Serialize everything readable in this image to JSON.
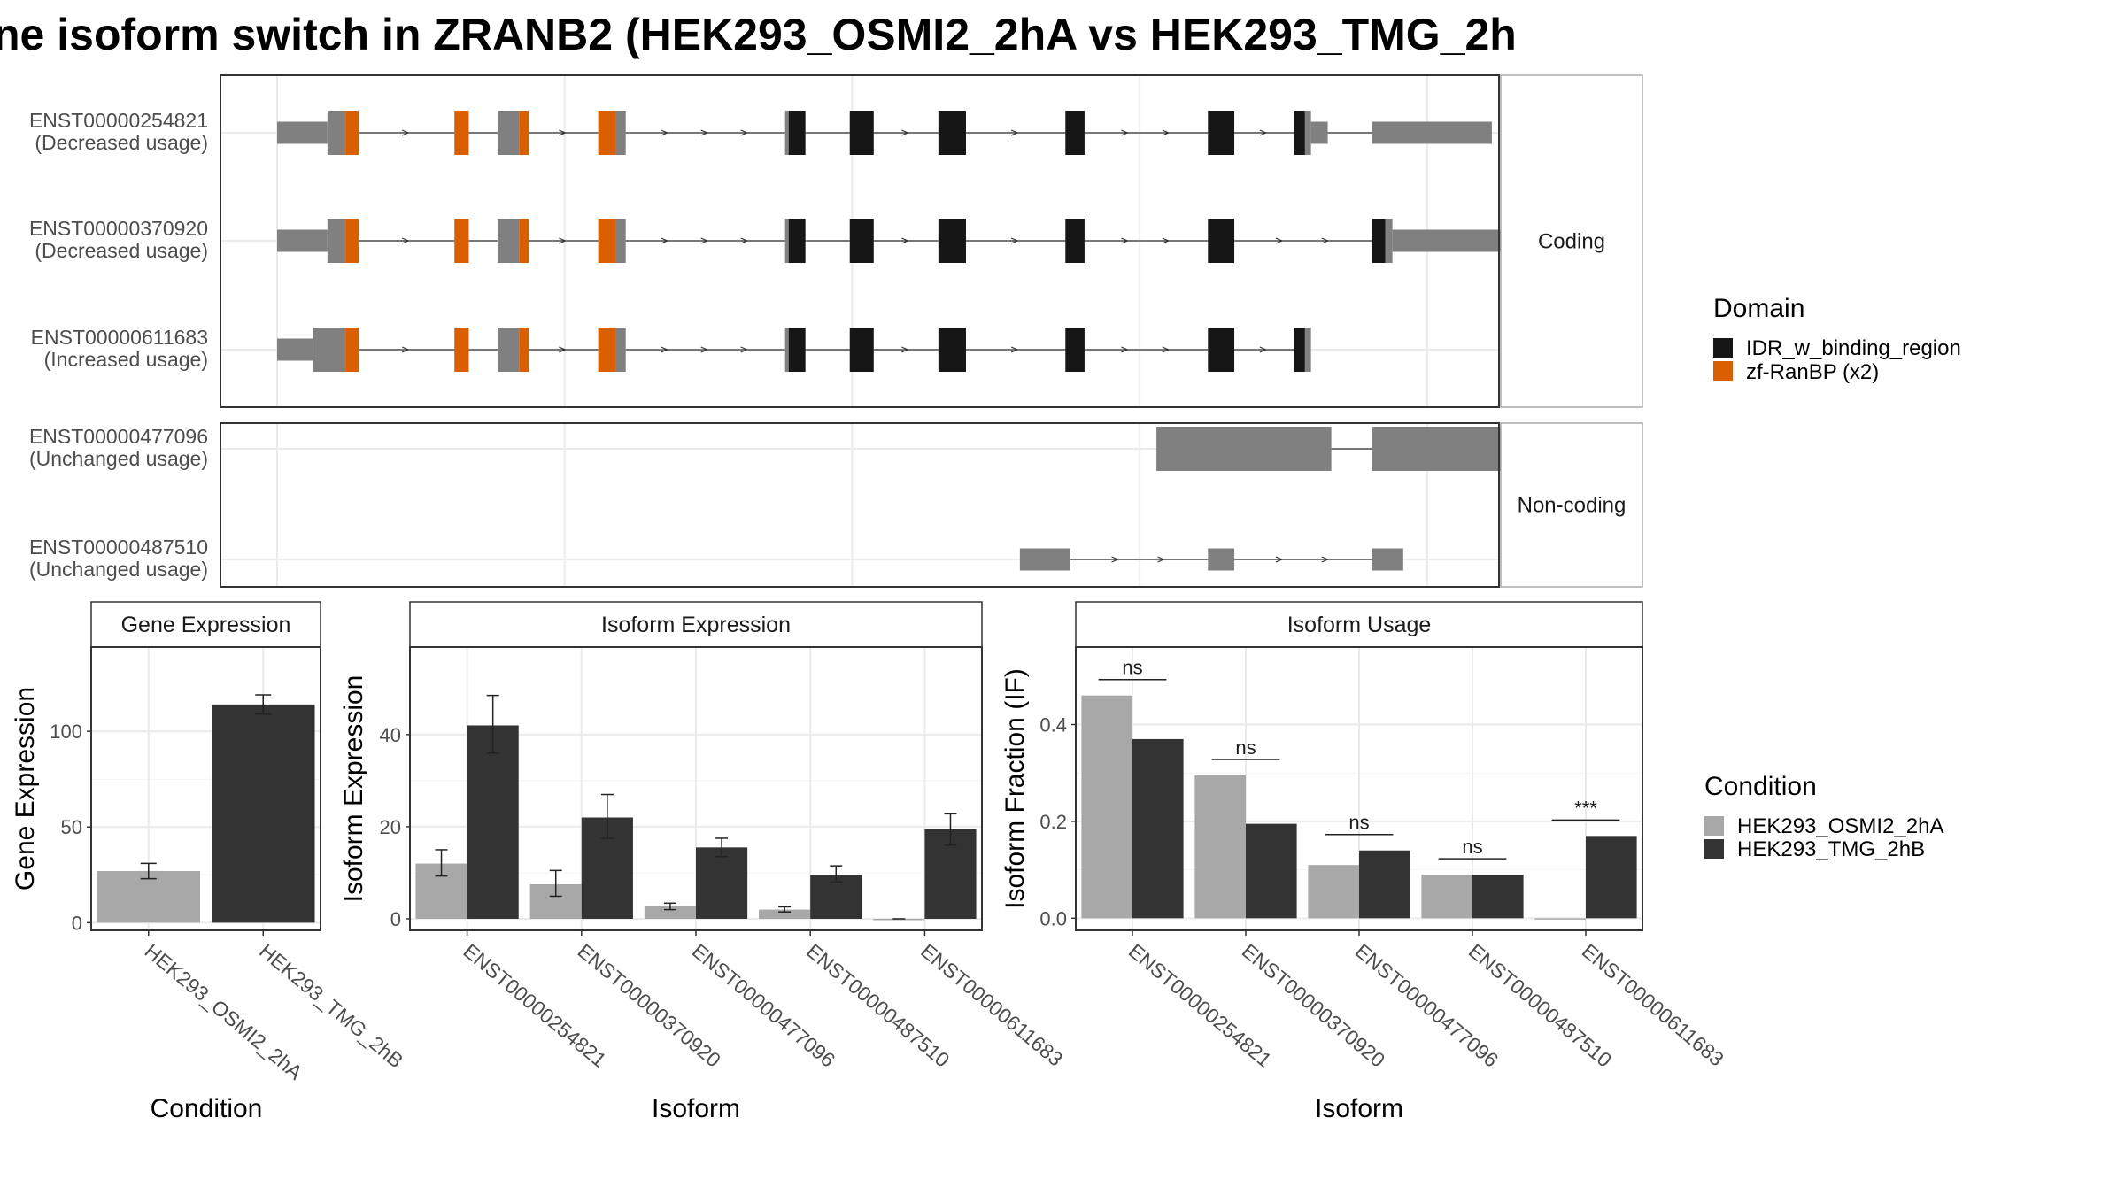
{
  "title": "ne isoform switch in ZRANB2 (HEK293_OSMI2_2hA vs HEK293_TMG_2h",
  "colors": {
    "utr": "#808080",
    "idr": "#161616",
    "zf": "#d95f02",
    "cond_a": "#a8a8a8",
    "cond_b": "#333333",
    "panel_border": "#333333",
    "strip_border": "#aaaaaa",
    "grid": "#ebebeb",
    "axis_text": "#4d4d4d"
  },
  "structure": {
    "xlim": [
      0,
      1000
    ],
    "facets": [
      {
        "label": "Coding",
        "isoforms": [
          {
            "id": "ENST00000254821",
            "usage": "(Decreased usage)",
            "exons": [
              {
                "s": 0,
                "e": 42,
                "h": "utr"
              },
              {
                "s": 42,
                "e": 57,
                "h": "full",
                "d": "utr"
              },
              {
                "s": 57,
                "e": 68,
                "h": "full",
                "d": "zf"
              },
              {
                "s": 148,
                "e": 160,
                "h": "full",
                "d": "zf"
              },
              {
                "s": 184,
                "e": 202,
                "h": "full",
                "d": "utr"
              },
              {
                "s": 202,
                "e": 210,
                "h": "full",
                "d": "zf"
              },
              {
                "s": 268,
                "e": 283,
                "h": "full",
                "d": "zf"
              },
              {
                "s": 283,
                "e": 291,
                "h": "full",
                "d": "utr"
              },
              {
                "s": 424,
                "e": 427,
                "h": "full",
                "d": "utr"
              },
              {
                "s": 427,
                "e": 441,
                "h": "full",
                "d": "idr"
              },
              {
                "s": 478,
                "e": 498,
                "h": "full",
                "d": "idr"
              },
              {
                "s": 552,
                "e": 575,
                "h": "full",
                "d": "idr"
              },
              {
                "s": 658,
                "e": 674,
                "h": "full",
                "d": "idr"
              },
              {
                "s": 777,
                "e": 799,
                "h": "full",
                "d": "idr"
              },
              {
                "s": 849,
                "e": 858,
                "h": "full",
                "d": "idr"
              },
              {
                "s": 858,
                "e": 863,
                "h": "full",
                "d": "utr"
              },
              {
                "s": 863,
                "e": 877,
                "h": "utr"
              },
              {
                "s": 914,
                "e": 1014,
                "h": "utr"
              }
            ]
          },
          {
            "id": "ENST00000370920",
            "usage": "(Decreased usage)",
            "exons": [
              {
                "s": 0,
                "e": 42,
                "h": "utr"
              },
              {
                "s": 42,
                "e": 57,
                "h": "full",
                "d": "utr"
              },
              {
                "s": 57,
                "e": 68,
                "h": "full",
                "d": "zf"
              },
              {
                "s": 148,
                "e": 160,
                "h": "full",
                "d": "zf"
              },
              {
                "s": 184,
                "e": 202,
                "h": "full",
                "d": "utr"
              },
              {
                "s": 202,
                "e": 210,
                "h": "full",
                "d": "zf"
              },
              {
                "s": 268,
                "e": 283,
                "h": "full",
                "d": "zf"
              },
              {
                "s": 283,
                "e": 291,
                "h": "full",
                "d": "utr"
              },
              {
                "s": 424,
                "e": 427,
                "h": "full",
                "d": "utr"
              },
              {
                "s": 427,
                "e": 441,
                "h": "full",
                "d": "idr"
              },
              {
                "s": 478,
                "e": 498,
                "h": "full",
                "d": "idr"
              },
              {
                "s": 552,
                "e": 575,
                "h": "full",
                "d": "idr"
              },
              {
                "s": 658,
                "e": 674,
                "h": "full",
                "d": "idr"
              },
              {
                "s": 777,
                "e": 799,
                "h": "full",
                "d": "idr"
              },
              {
                "s": 914,
                "e": 925,
                "h": "full",
                "d": "idr"
              },
              {
                "s": 925,
                "e": 931,
                "h": "full",
                "d": "utr"
              },
              {
                "s": 931,
                "e": 1028,
                "h": "utr"
              }
            ]
          },
          {
            "id": "ENST00000611683",
            "usage": "(Increased usage)",
            "exons": [
              {
                "s": 0,
                "e": 30,
                "h": "utr"
              },
              {
                "s": 30,
                "e": 57,
                "h": "full",
                "d": "utr"
              },
              {
                "s": 57,
                "e": 68,
                "h": "full",
                "d": "zf"
              },
              {
                "s": 148,
                "e": 160,
                "h": "full",
                "d": "zf"
              },
              {
                "s": 184,
                "e": 202,
                "h": "full",
                "d": "utr"
              },
              {
                "s": 202,
                "e": 210,
                "h": "full",
                "d": "zf"
              },
              {
                "s": 268,
                "e": 283,
                "h": "full",
                "d": "zf"
              },
              {
                "s": 283,
                "e": 291,
                "h": "full",
                "d": "utr"
              },
              {
                "s": 424,
                "e": 427,
                "h": "full",
                "d": "utr"
              },
              {
                "s": 427,
                "e": 441,
                "h": "full",
                "d": "idr"
              },
              {
                "s": 478,
                "e": 498,
                "h": "full",
                "d": "idr"
              },
              {
                "s": 552,
                "e": 575,
                "h": "full",
                "d": "idr"
              },
              {
                "s": 658,
                "e": 674,
                "h": "full",
                "d": "idr"
              },
              {
                "s": 777,
                "e": 799,
                "h": "full",
                "d": "idr"
              },
              {
                "s": 849,
                "e": 858,
                "h": "full",
                "d": "idr"
              },
              {
                "s": 858,
                "e": 863,
                "h": "full",
                "d": "utr"
              }
            ]
          }
        ]
      },
      {
        "label": "Non-coding",
        "isoforms": [
          {
            "id": "ENST00000477096",
            "usage": "(Unchanged usage)",
            "exons": [
              {
                "s": 734,
                "e": 880,
                "h": "full",
                "d": "utr"
              },
              {
                "s": 914,
                "e": 1024,
                "h": "full",
                "d": "utr"
              }
            ]
          },
          {
            "id": "ENST00000487510",
            "usage": "(Unchanged usage)",
            "exons": [
              {
                "s": 620,
                "e": 662,
                "h": "utr"
              },
              {
                "s": 777,
                "e": 799,
                "h": "utr"
              },
              {
                "s": 914,
                "e": 940,
                "h": "utr"
              }
            ]
          }
        ]
      }
    ]
  },
  "legend_domain": {
    "title": "Domain",
    "items": [
      {
        "label": "IDR_w_binding_region",
        "color": "#161616"
      },
      {
        "label": "zf-RanBP (x2)",
        "color": "#d95f02"
      }
    ]
  },
  "legend_condition": {
    "title": "Condition",
    "items": [
      {
        "label": "HEK293_OSMI2_2hA",
        "color": "#a8a8a8"
      },
      {
        "label": "HEK293_TMG_2hB",
        "color": "#333333"
      }
    ]
  },
  "chart_data": [
    {
      "type": "bar",
      "strip": "Gene Expression",
      "xlabel": "Condition",
      "ylabel": "Gene Expression",
      "categories": [
        "HEK293_OSMI2_2hA",
        "HEK293_TMG_2hB"
      ],
      "values": [
        27,
        114
      ],
      "errors": [
        [
          23,
          31
        ],
        [
          109,
          119
        ]
      ],
      "ylim": [
        -4,
        144
      ],
      "yticks": [
        0,
        50,
        100
      ]
    },
    {
      "type": "bar",
      "strip": "Isoform Expression",
      "xlabel": "Isoform",
      "ylabel": "Isoform Expression",
      "categories": [
        "ENST00000254821",
        "ENST00000370920",
        "ENST00000477096",
        "ENST00000487510",
        "ENST00000611683"
      ],
      "series": [
        {
          "name": "HEK293_OSMI2_2hA",
          "values": [
            12,
            7.5,
            2.7,
            2.0,
            0
          ],
          "errors": [
            [
              9.3,
              15
            ],
            [
              4.9,
              10.5
            ],
            [
              2.0,
              3.4
            ],
            [
              1.5,
              2.6
            ],
            [
              0,
              0
            ]
          ]
        },
        {
          "name": "HEK293_TMG_2hB",
          "values": [
            42,
            22,
            15.5,
            9.5,
            19.5
          ],
          "errors": [
            [
              36,
              48.5
            ],
            [
              17.5,
              27
            ],
            [
              13.5,
              17.5
            ],
            [
              8,
              11.5
            ],
            [
              16,
              22.8
            ]
          ]
        }
      ],
      "ylim": [
        -2.5,
        59
      ],
      "yticks": [
        0,
        20,
        40
      ]
    },
    {
      "type": "bar",
      "strip": "Isoform Usage",
      "xlabel": "Isoform",
      "ylabel": "Isoform Fraction (IF)",
      "categories": [
        "ENST00000254821",
        "ENST00000370920",
        "ENST00000477096",
        "ENST00000487510",
        "ENST00000611683"
      ],
      "series": [
        {
          "name": "HEK293_OSMI2_2hA",
          "values": [
            0.46,
            0.295,
            0.11,
            0.09,
            0
          ]
        },
        {
          "name": "HEK293_TMG_2hB",
          "values": [
            0.37,
            0.195,
            0.14,
            0.09,
            0.17
          ]
        }
      ],
      "annotations": [
        "ns",
        "ns",
        "ns",
        "ns",
        "***"
      ],
      "ylim": [
        -0.025,
        0.56
      ],
      "yticks": [
        0.0,
        0.2,
        0.4
      ],
      "ytick_labels": [
        "0.0",
        "0.2",
        "0.4"
      ]
    }
  ]
}
